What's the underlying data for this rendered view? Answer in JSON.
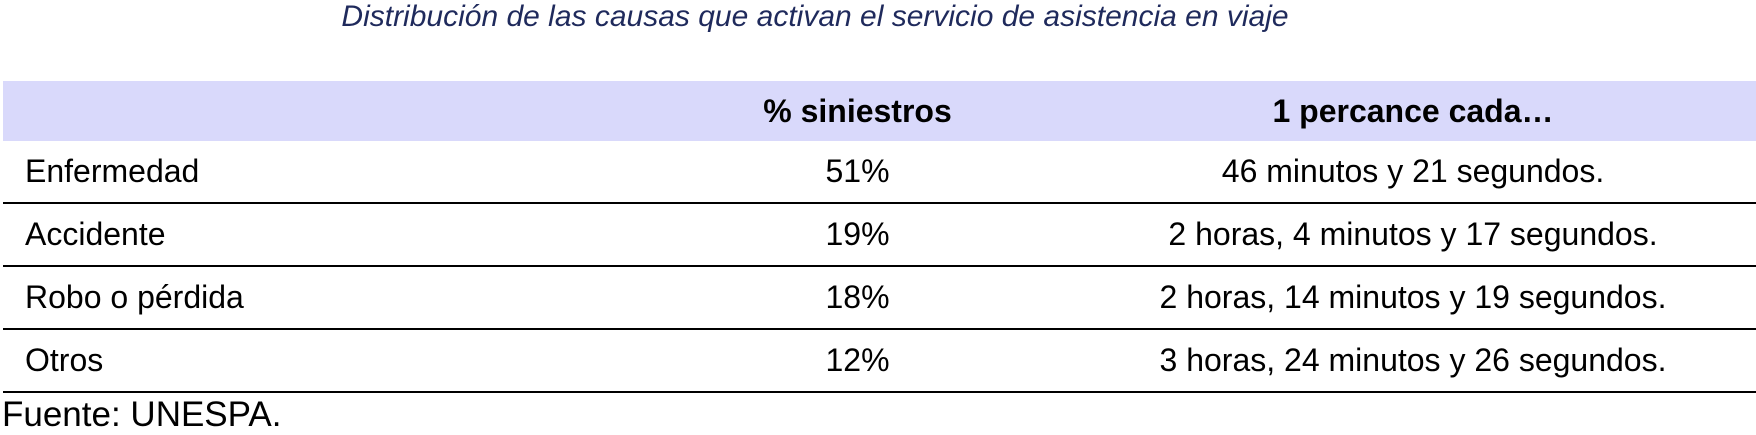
{
  "title": "Distribución de las causas que activan el servicio de asistencia en viaje",
  "table": {
    "columns": [
      "% siniestros",
      "1 percance cada…"
    ],
    "rows": [
      [
        "Enfermedad",
        "51%",
        "46 minutos y 21 segundos."
      ],
      [
        "Accidente",
        "19%",
        "2 horas, 4 minutos y 17 segundos."
      ],
      [
        "Robo o pérdida",
        "18%",
        "2 horas, 14 minutos y 19 segundos."
      ],
      [
        "Otros",
        "12%",
        "3 horas, 24 minutos y 26 segundos."
      ]
    ]
  },
  "source": "Fuente: UNESPA."
}
